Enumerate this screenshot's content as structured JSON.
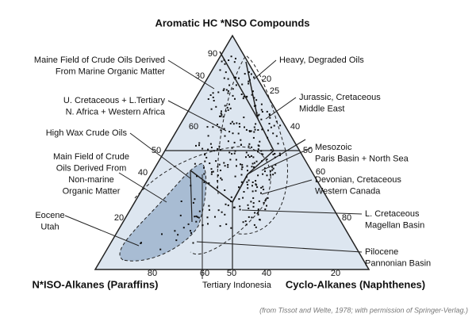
{
  "title": "Aromatic HC *NSO Compounds",
  "axis_left": "N*ISO-Alkanes (Paraffins)",
  "axis_right": "Cyclo-Alkanes (Naphthenes)",
  "ticks": [
    "90",
    "30",
    "60",
    "50",
    "40",
    "20",
    "20",
    "25",
    "40",
    "50",
    "60",
    "80",
    "20",
    "80",
    "60",
    "50",
    "40"
  ],
  "annotations": [
    {
      "lines": [
        "Maine Field of Crude Oils Derived",
        "From Marine Organic Matter"
      ]
    },
    {
      "lines": [
        "U. Cretaceous + L.Tertiary",
        "N. Africa + Western Africa"
      ]
    },
    {
      "lines": [
        "High Wax Crude Oils"
      ]
    },
    {
      "lines": [
        "Main Field of Crude",
        "Oils Derived From",
        "Non-marine",
        "Organic Matter"
      ]
    },
    {
      "lines": [
        "Eocene",
        "Utah"
      ]
    },
    {
      "lines": [
        "Heavy, Degraded Oils"
      ]
    },
    {
      "lines": [
        "Jurassic, Cretaceous",
        "Middle East"
      ]
    },
    {
      "lines": [
        "Mesozoic",
        "Paris Basin + North Sea"
      ]
    },
    {
      "lines": [
        "Devonian, Cretaceous",
        "Western Canada"
      ]
    },
    {
      "lines": [
        "L. Cretaceous",
        "Magellan Basin"
      ]
    },
    {
      "lines": [
        "Pilocene",
        "Pannonian Basin"
      ]
    },
    {
      "lines": [
        "Tertiary Indonesia"
      ]
    }
  ],
  "credit": "(from Tissot and Welte, 1978; with permission of Springer-Verlag.)"
}
